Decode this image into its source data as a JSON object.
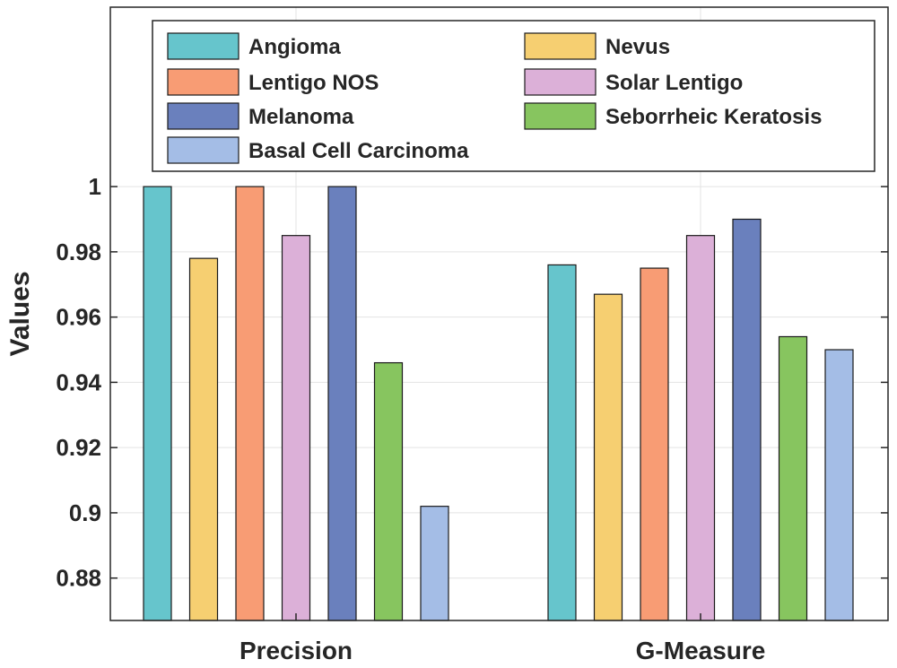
{
  "chart_data": {
    "type": "bar",
    "title": "",
    "xlabel": "",
    "ylabel": "Values",
    "ylim": [
      0.867,
      1.055
    ],
    "yticks": [
      0.88,
      0.9,
      0.92,
      0.94,
      0.96,
      0.98,
      1
    ],
    "ytick_labels": [
      "0.88",
      "0.9",
      "0.92",
      "0.94",
      "0.96",
      "0.98",
      "1"
    ],
    "grid": true,
    "legend_position": "top",
    "categories": [
      "Precision",
      "G-Measure"
    ],
    "series": [
      {
        "name": "Angioma",
        "color": "#66c5cc",
        "values": [
          1.0,
          0.976
        ]
      },
      {
        "name": "Nevus",
        "color": "#f6cf71",
        "values": [
          0.978,
          0.967
        ]
      },
      {
        "name": "Lentigo NOS",
        "color": "#f89c74",
        "values": [
          1.0,
          0.975
        ]
      },
      {
        "name": "Solar Lentigo",
        "color": "#dcb0d8",
        "values": [
          0.985,
          0.985
        ]
      },
      {
        "name": "Melanoma",
        "color": "#6a80bd",
        "values": [
          1.0,
          0.99
        ]
      },
      {
        "name": "Seborrheic Keratosis",
        "color": "#87c55f",
        "values": [
          0.946,
          0.954
        ]
      },
      {
        "name": "Basal Cell Carcinoma",
        "color": "#a4bde6",
        "values": [
          0.902,
          0.95
        ]
      }
    ]
  }
}
